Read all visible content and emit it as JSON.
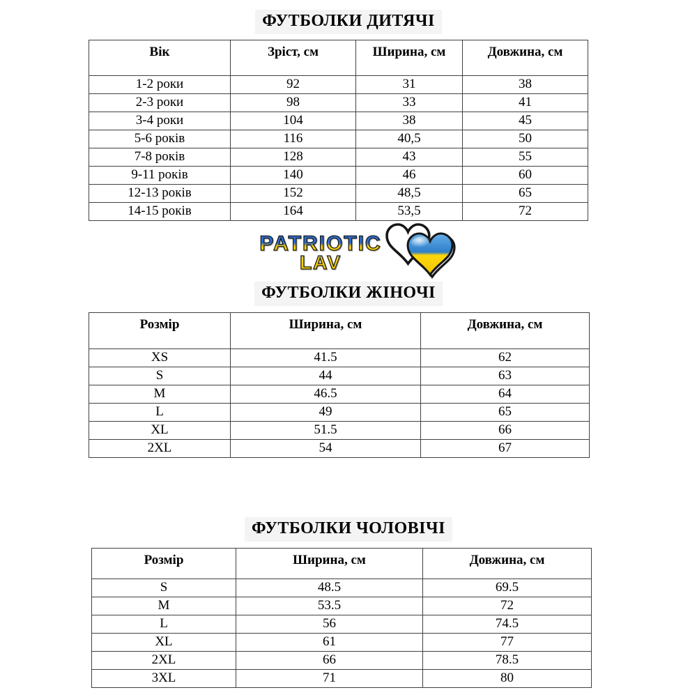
{
  "page": {
    "background": "#ffffff"
  },
  "logo": {
    "word1": "PATRIOTIC",
    "word2": "LAV",
    "colors": {
      "blue": "#2e6fd2",
      "yellow": "#ffd60a",
      "outline": "#1c1c1c"
    },
    "icon": "ukraine-hearts"
  },
  "sections": [
    {
      "id": "kids",
      "title": "ФУТБОЛКИ ДИТЯЧІ",
      "columns": [
        "Вік",
        "Зріст, см",
        "Ширина, см",
        "Довжина, см"
      ],
      "rows": [
        [
          "1-2 роки",
          "92",
          "31",
          "38"
        ],
        [
          "2-3 роки",
          "98",
          "33",
          "41"
        ],
        [
          "3-4 роки",
          "104",
          "38",
          "45"
        ],
        [
          "5-6 років",
          "116",
          "40,5",
          "50"
        ],
        [
          "7-8 років",
          "128",
          "43",
          "55"
        ],
        [
          "9-11 років",
          "140",
          "46",
          "60"
        ],
        [
          "12-13 років",
          "152",
          "48,5",
          "65"
        ],
        [
          "14-15 років",
          "164",
          "53,5",
          "72"
        ]
      ]
    },
    {
      "id": "women",
      "title": "ФУТБОЛКИ ЖІНОЧІ",
      "columns": [
        "Розмір",
        "Ширина, см",
        "Довжина, см"
      ],
      "rows": [
        [
          "XS",
          "41.5",
          "62"
        ],
        [
          "S",
          "44",
          "63"
        ],
        [
          "M",
          "46.5",
          "64"
        ],
        [
          "L",
          "49",
          "65"
        ],
        [
          "XL",
          "51.5",
          "66"
        ],
        [
          "2XL",
          "54",
          "67"
        ]
      ]
    },
    {
      "id": "men",
      "title": "ФУТБОЛКИ ЧОЛОВІЧІ",
      "columns": [
        "Розмір",
        "Ширина, см",
        "Довжина, см"
      ],
      "rows": [
        [
          "S",
          "48.5",
          "69.5"
        ],
        [
          "M",
          "53.5",
          "72"
        ],
        [
          "L",
          "56",
          "74.5"
        ],
        [
          "XL",
          "61",
          "77"
        ],
        [
          "2XL",
          "66",
          "78.5"
        ],
        [
          "3XL",
          "71",
          "80"
        ]
      ]
    }
  ]
}
